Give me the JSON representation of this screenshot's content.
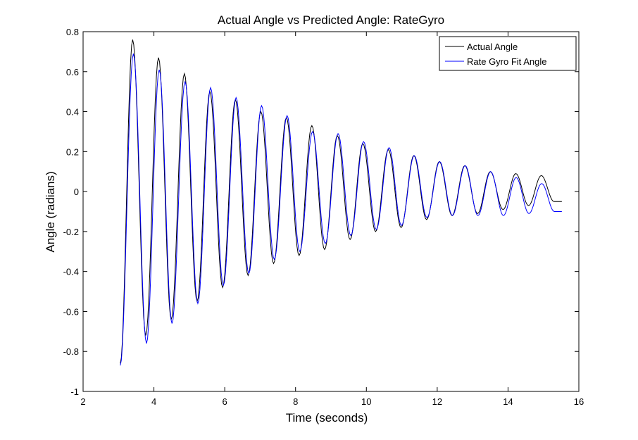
{
  "chart_data": {
    "type": "line",
    "title": "Actual Angle vs Predicted Angle: RateGyro",
    "xlabel": "Time (seconds)",
    "ylabel": "Angle (radians)",
    "xlim": [
      2,
      16
    ],
    "ylim": [
      -1,
      0.8
    ],
    "xticks": [
      2,
      4,
      6,
      8,
      10,
      12,
      14,
      16
    ],
    "xtick_labels": [
      "2",
      "4",
      "6",
      "8",
      "10",
      "12",
      "14",
      "16"
    ],
    "yticks": [
      -1,
      -0.8,
      -0.6,
      -0.4,
      -0.2,
      0,
      0.2,
      0.4,
      0.6,
      0.8
    ],
    "ytick_labels": [
      "-1",
      "-0.8",
      "-0.6",
      "-0.4",
      "-0.2",
      "0",
      "0.2",
      "0.4",
      "0.6",
      "0.8"
    ],
    "grid": false,
    "legend_position": "top-right",
    "series": [
      {
        "name": "Actual Angle",
        "color": "#000000",
        "x": [
          3.05,
          3.4,
          3.77,
          4.13,
          4.49,
          4.86,
          5.22,
          5.58,
          5.94,
          6.3,
          6.66,
          7.02,
          7.38,
          7.74,
          8.1,
          8.46,
          8.82,
          9.18,
          9.54,
          9.9,
          10.26,
          10.62,
          10.98,
          11.34,
          11.7,
          12.06,
          12.42,
          12.78,
          13.14,
          13.5,
          13.86,
          14.22,
          14.58,
          14.94,
          15.3,
          15.52
        ],
        "y": [
          -0.86,
          0.76,
          -0.72,
          0.67,
          -0.64,
          0.59,
          -0.55,
          0.5,
          -0.48,
          0.46,
          -0.42,
          0.4,
          -0.36,
          0.37,
          -0.32,
          0.33,
          -0.29,
          0.28,
          -0.24,
          0.24,
          -0.2,
          0.21,
          -0.18,
          0.18,
          -0.14,
          0.15,
          -0.12,
          0.13,
          -0.11,
          0.1,
          -0.09,
          0.09,
          -0.07,
          0.08,
          -0.05,
          -0.05
        ]
      },
      {
        "name": "Rate Gyro Fit Angle",
        "color": "#0000ff",
        "x": [
          3.05,
          3.42,
          3.79,
          4.15,
          4.51,
          4.88,
          5.24,
          5.6,
          5.96,
          6.32,
          6.68,
          7.04,
          7.4,
          7.76,
          8.12,
          8.48,
          8.84,
          9.2,
          9.56,
          9.92,
          10.28,
          10.64,
          10.99,
          11.35,
          11.71,
          12.07,
          12.43,
          12.79,
          13.15,
          13.51,
          13.87,
          14.23,
          14.59,
          14.95,
          15.31,
          15.52
        ],
        "y": [
          -0.87,
          0.69,
          -0.76,
          0.61,
          -0.66,
          0.55,
          -0.56,
          0.52,
          -0.47,
          0.47,
          -0.41,
          0.43,
          -0.34,
          0.38,
          -0.3,
          0.3,
          -0.26,
          0.29,
          -0.22,
          0.25,
          -0.19,
          0.22,
          -0.17,
          0.18,
          -0.13,
          0.15,
          -0.12,
          0.13,
          -0.12,
          0.1,
          -0.12,
          0.07,
          -0.11,
          0.04,
          -0.1,
          -0.1
        ]
      }
    ]
  }
}
